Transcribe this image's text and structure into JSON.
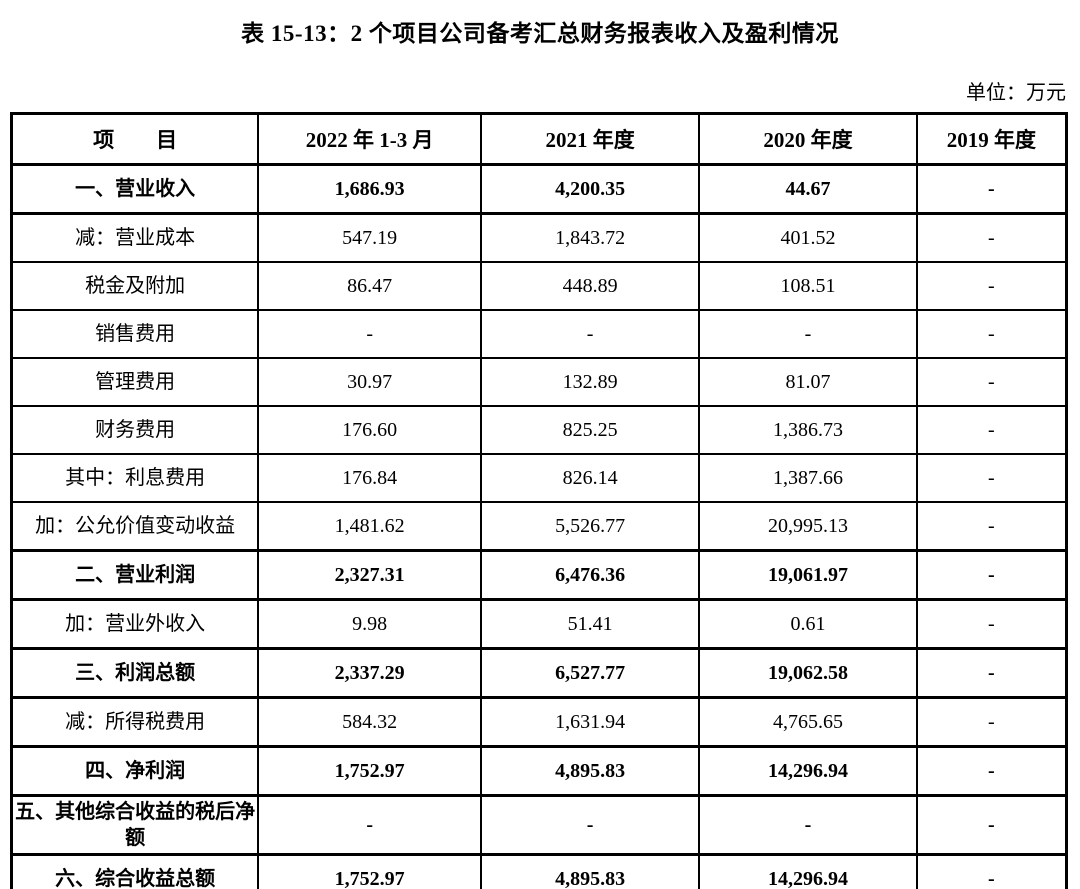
{
  "page": {
    "title": "表 15-13：2 个项目公司备考汇总财务报表收入及盈利情况",
    "unit_label": "单位：万元"
  },
  "table": {
    "columns": [
      "项　　目",
      "2022 年 1-3 月",
      "2021 年度",
      "2020 年度",
      "2019 年度"
    ],
    "rows": [
      {
        "label": "一、营业收入",
        "bold": true,
        "values": [
          "1,686.93",
          "4,200.35",
          "44.67",
          "-"
        ]
      },
      {
        "label": "减：营业成本",
        "bold": false,
        "values": [
          "547.19",
          "1,843.72",
          "401.52",
          "-"
        ]
      },
      {
        "label": "税金及附加",
        "bold": false,
        "values": [
          "86.47",
          "448.89",
          "108.51",
          "-"
        ]
      },
      {
        "label": "销售费用",
        "bold": false,
        "values": [
          "-",
          "-",
          "-",
          "-"
        ]
      },
      {
        "label": "管理费用",
        "bold": false,
        "values": [
          "30.97",
          "132.89",
          "81.07",
          "-"
        ]
      },
      {
        "label": "财务费用",
        "bold": false,
        "values": [
          "176.60",
          "825.25",
          "1,386.73",
          "-"
        ]
      },
      {
        "label": "其中：利息费用",
        "bold": false,
        "values": [
          "176.84",
          "826.14",
          "1,387.66",
          "-"
        ]
      },
      {
        "label": "加：公允价值变动收益",
        "bold": false,
        "values": [
          "1,481.62",
          "5,526.77",
          "20,995.13",
          "-"
        ]
      },
      {
        "label": "二、营业利润",
        "bold": true,
        "values": [
          "2,327.31",
          "6,476.36",
          "19,061.97",
          "-"
        ]
      },
      {
        "label": "加：营业外收入",
        "bold": false,
        "values": [
          "9.98",
          "51.41",
          "0.61",
          "-"
        ]
      },
      {
        "label": "三、利润总额",
        "bold": true,
        "values": [
          "2,337.29",
          "6,527.77",
          "19,062.58",
          "-"
        ]
      },
      {
        "label": "减：所得税费用",
        "bold": false,
        "values": [
          "584.32",
          "1,631.94",
          "4,765.65",
          "-"
        ]
      },
      {
        "label": "四、净利润",
        "bold": true,
        "values": [
          "1,752.97",
          "4,895.83",
          "14,296.94",
          "-"
        ]
      },
      {
        "label": "五、其他综合收益的税后净额",
        "bold": true,
        "values": [
          "-",
          "-",
          "-",
          "-"
        ]
      },
      {
        "label": "六、综合收益总额",
        "bold": true,
        "values": [
          "1,752.97",
          "4,895.83",
          "14,296.94",
          "-"
        ]
      }
    ]
  }
}
